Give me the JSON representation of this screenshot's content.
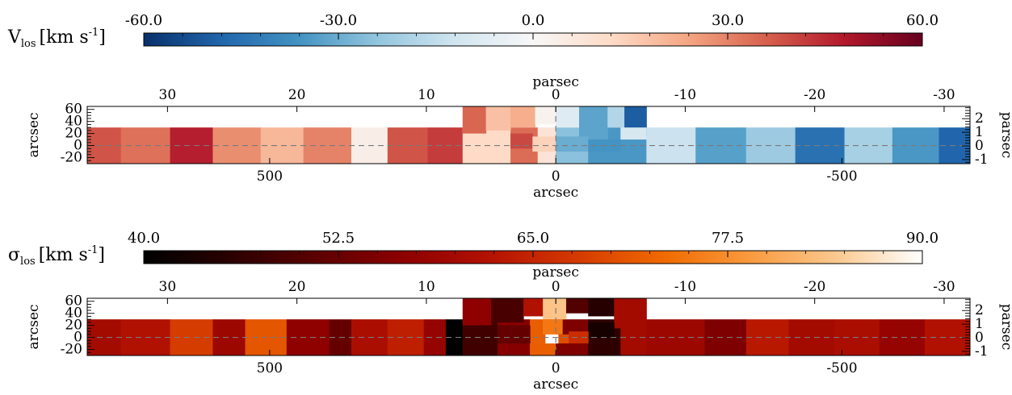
{
  "chart_data": [
    {
      "type": "heatmap",
      "title": "",
      "quantity_label": {
        "main": "V",
        "sub": "los",
        "units": "[km s",
        "sup": "-1",
        "close": "]"
      },
      "colorbar": {
        "range": [
          -60,
          60
        ],
        "tick_labels": [
          "-60.0",
          "-30.0",
          "0.0",
          "30.0",
          "60.0"
        ],
        "tick_values": [
          -60,
          -30,
          0,
          30,
          60
        ],
        "colormap": [
          "#08306b",
          "#2166ac",
          "#4393c3",
          "#92c5de",
          "#d1e5f0",
          "#f7f7f7",
          "#fddbc7",
          "#f4a582",
          "#d6604d",
          "#b2182b",
          "#67001f"
        ]
      },
      "axes": {
        "top_label": "parsec",
        "top_ticks": [
          "30",
          "20",
          "10",
          "0",
          "-10",
          "-20",
          "-30"
        ],
        "top_tick_values": [
          30,
          20,
          10,
          0,
          -10,
          -20,
          -30
        ],
        "top_range": [
          36.2,
          -32
        ],
        "bottom_label": "arcsec",
        "bottom_ticks": [
          "500",
          "0",
          "-500"
        ],
        "bottom_tick_values": [
          500,
          0,
          -500
        ],
        "left_label": "arcsec",
        "left_ticks": [
          "60",
          "40",
          "20",
          "0",
          "-20"
        ],
        "left_tick_values": [
          60,
          40,
          20,
          0,
          -20
        ],
        "left_range": [
          -30,
          65
        ],
        "right_label": "parsec",
        "right_ticks": [
          "2",
          "1",
          "0",
          "-1"
        ],
        "right_tick_values": [
          2,
          1,
          0,
          -1
        ],
        "right_range": [
          -1.3,
          2.9
        ]
      },
      "dashed_line_y": 0,
      "cells": [
        {
          "x0": 36.2,
          "x1": 33.6,
          "v": 38
        },
        {
          "x0": 33.6,
          "x1": 29.8,
          "v": 33
        },
        {
          "x0": 29.8,
          "x1": 26.5,
          "v": 47
        },
        {
          "x0": 26.5,
          "x1": 22.8,
          "v": 28
        },
        {
          "x0": 22.8,
          "x1": 19.5,
          "v": 20
        },
        {
          "x0": 19.5,
          "x1": 15.8,
          "v": 30
        },
        {
          "x0": 15.8,
          "x1": 13.0,
          "v": 4
        },
        {
          "x0": 13.0,
          "x1": 9.9,
          "v": 38
        },
        {
          "x0": 9.9,
          "x1": 7.2,
          "v": 42
        },
        {
          "x0": 7.2,
          "x1": 3.5,
          "v": 12
        },
        {
          "x0": 3.5,
          "x1": 1.4,
          "v": 34
        },
        {
          "x0": 1.4,
          "x1": 0.0,
          "v": 8
        },
        {
          "x0": 0.0,
          "x1": -2.5,
          "v": -25
        },
        {
          "x0": -2.5,
          "x1": -7.0,
          "v": -35
        },
        {
          "x0": -7.0,
          "x1": -10.8,
          "v": -13
        },
        {
          "x0": -10.8,
          "x1": -14.7,
          "v": -33
        },
        {
          "x0": -14.7,
          "x1": -18.5,
          "v": -22
        },
        {
          "x0": -18.5,
          "x1": -22.3,
          "v": -45
        },
        {
          "x0": -22.3,
          "x1": -26.0,
          "v": -20
        },
        {
          "x0": -26.0,
          "x1": -29.6,
          "v": -35
        },
        {
          "x0": -29.6,
          "x1": -32.0,
          "v": -48
        }
      ],
      "center_cells": [
        {
          "x0": 7.2,
          "x1": 5.4,
          "y0": 20,
          "y1": 65,
          "v": 35
        },
        {
          "x0": 5.4,
          "x1": 3.5,
          "y0": 25,
          "y1": 65,
          "v": 18
        },
        {
          "x0": 3.5,
          "x1": 1.6,
          "y0": 30,
          "y1": 65,
          "v": 22
        },
        {
          "x0": 1.6,
          "x1": 0.0,
          "y0": 35,
          "y1": 65,
          "v": 2
        },
        {
          "x0": 3.5,
          "x1": 1.8,
          "y0": -5,
          "y1": 20,
          "v": 40
        },
        {
          "x0": 1.8,
          "x1": 0.0,
          "y0": -10,
          "y1": 15,
          "v": 14
        },
        {
          "x0": 0.0,
          "x1": -1.8,
          "y0": 30,
          "y1": 65,
          "v": -8
        },
        {
          "x0": -1.8,
          "x1": -4.0,
          "y0": 10,
          "y1": 65,
          "v": -32
        },
        {
          "x0": -4.0,
          "x1": -5.3,
          "y0": 30,
          "y1": 65,
          "v": -18
        },
        {
          "x0": -5.3,
          "x1": -7.0,
          "y0": 15,
          "y1": 65,
          "v": -50
        },
        {
          "x0": 0.0,
          "x1": -2.5,
          "y0": -10,
          "y1": 15,
          "v": -30
        },
        {
          "x0": -2.5,
          "x1": -5.0,
          "y0": -10,
          "y1": 10,
          "v": -36
        },
        {
          "x0": -5.0,
          "x1": -7.0,
          "y0": 10,
          "y1": 30,
          "v": -10
        }
      ]
    },
    {
      "type": "heatmap",
      "title": "",
      "quantity_label": {
        "main": "σ",
        "sub": "los",
        "units": "[km s",
        "sup": "-1",
        "close": "]"
      },
      "colorbar": {
        "range": [
          40,
          90
        ],
        "tick_labels": [
          "40.0",
          "52.5",
          "65.0",
          "77.5",
          "90.0"
        ],
        "tick_values": [
          40,
          52.5,
          65,
          77.5,
          90
        ],
        "colormap": [
          "#000000",
          "#2a0000",
          "#5c0000",
          "#8c0000",
          "#b31200",
          "#d43a00",
          "#f06a00",
          "#f99a3e",
          "#fcc88e",
          "#ffffff"
        ]
      },
      "axes": {
        "top_label": "parsec",
        "top_ticks": [
          "30",
          "20",
          "10",
          "0",
          "-10",
          "-20",
          "-30"
        ],
        "top_tick_values": [
          30,
          20,
          10,
          0,
          -10,
          -20,
          -30
        ],
        "top_range": [
          36.2,
          -32
        ],
        "bottom_label": "arcsec",
        "bottom_ticks": [
          "500",
          "0",
          "-500"
        ],
        "bottom_tick_values": [
          500,
          0,
          -500
        ],
        "left_label": "arcsec",
        "left_ticks": [
          "60",
          "40",
          "20",
          "0",
          "-20"
        ],
        "left_tick_values": [
          60,
          40,
          20,
          0,
          -20
        ],
        "left_range": [
          -30,
          65
        ],
        "right_label": "parsec",
        "right_ticks": [
          "2",
          "1",
          "0",
          "-1"
        ],
        "right_tick_values": [
          2,
          1,
          0,
          -1
        ],
        "right_range": [
          -1.3,
          2.9
        ]
      },
      "dashed_line_y": 0,
      "cells": [
        {
          "x0": 36.2,
          "x1": 33.6,
          "v": 60
        },
        {
          "x0": 33.6,
          "x1": 29.8,
          "v": 62
        },
        {
          "x0": 29.8,
          "x1": 26.5,
          "v": 68
        },
        {
          "x0": 26.5,
          "x1": 24.0,
          "v": 59
        },
        {
          "x0": 24.0,
          "x1": 20.8,
          "v": 71
        },
        {
          "x0": 20.8,
          "x1": 17.5,
          "v": 57
        },
        {
          "x0": 17.5,
          "x1": 15.8,
          "v": 52
        },
        {
          "x0": 15.8,
          "x1": 13.0,
          "v": 61
        },
        {
          "x0": 13.0,
          "x1": 10.2,
          "v": 64
        },
        {
          "x0": 10.2,
          "x1": 8.5,
          "v": 58
        },
        {
          "x0": 8.5,
          "x1": 7.2,
          "v": 40
        },
        {
          "x0": 7.2,
          "x1": 4.5,
          "v": 48
        },
        {
          "x0": 4.5,
          "x1": 2.0,
          "v": 56
        },
        {
          "x0": 2.0,
          "x1": 0.0,
          "v": 72
        },
        {
          "x0": 0.0,
          "x1": -2.5,
          "v": 55
        },
        {
          "x0": -2.5,
          "x1": -5.0,
          "v": 46
        },
        {
          "x0": -5.0,
          "x1": -7.0,
          "v": 60
        },
        {
          "x0": -7.0,
          "x1": -11.5,
          "v": 59
        },
        {
          "x0": -11.5,
          "x1": -14.7,
          "v": 55
        },
        {
          "x0": -14.7,
          "x1": -18.0,
          "v": 63
        },
        {
          "x0": -18.0,
          "x1": -21.5,
          "v": 60
        },
        {
          "x0": -21.5,
          "x1": -25.0,
          "v": 61
        },
        {
          "x0": -25.0,
          "x1": -28.5,
          "v": 58
        },
        {
          "x0": -28.5,
          "x1": -32.0,
          "v": 62
        }
      ],
      "center_cells": [
        {
          "x0": 7.2,
          "x1": 5.0,
          "y0": 20,
          "y1": 65,
          "v": 57
        },
        {
          "x0": 5.0,
          "x1": 2.5,
          "y0": 25,
          "y1": 65,
          "v": 49
        },
        {
          "x0": 2.5,
          "x1": 1.0,
          "y0": 35,
          "y1": 65,
          "v": 62
        },
        {
          "x0": 1.0,
          "x1": -0.8,
          "y0": 30,
          "y1": 65,
          "v": 84
        },
        {
          "x0": -0.8,
          "x1": -2.5,
          "y0": 40,
          "y1": 65,
          "v": 50
        },
        {
          "x0": -2.5,
          "x1": -4.5,
          "y0": 35,
          "y1": 65,
          "v": 45
        },
        {
          "x0": -4.5,
          "x1": -7.0,
          "y0": 15,
          "y1": 65,
          "v": 60
        },
        {
          "x0": 4.5,
          "x1": 2.0,
          "y0": -10,
          "y1": 20,
          "v": 52
        },
        {
          "x0": 1.0,
          "x1": -0.5,
          "y0": 5,
          "y1": 30,
          "v": 75
        },
        {
          "x0": 0.8,
          "x1": -0.2,
          "y0": -10,
          "y1": 5,
          "v": 90
        },
        {
          "x0": -0.2,
          "x1": -1.0,
          "y0": -10,
          "y1": 5,
          "v": 70
        },
        {
          "x0": -2.5,
          "x1": -4.5,
          "y0": 0,
          "y1": 25,
          "v": 43
        },
        {
          "x0": -1.0,
          "x1": -2.5,
          "y0": -10,
          "y1": 10,
          "v": 66
        }
      ]
    }
  ]
}
